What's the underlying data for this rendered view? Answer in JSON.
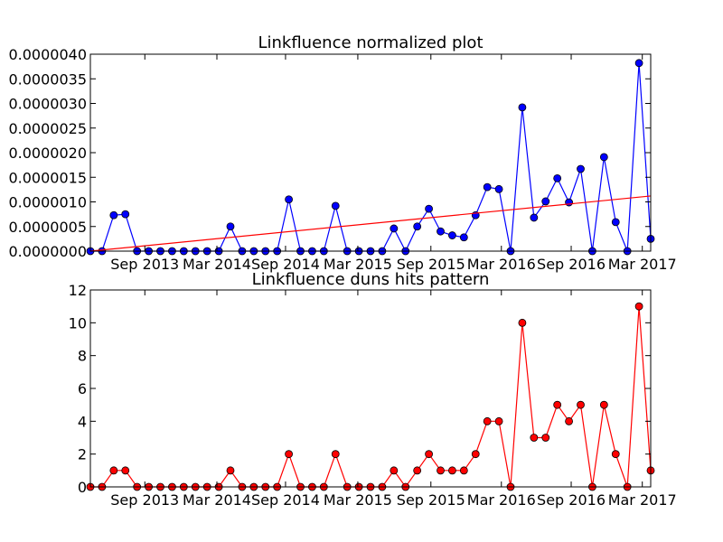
{
  "chart_data": [
    {
      "type": "line",
      "title": "Linkfluence normalized plot",
      "xlabel": "",
      "ylabel": "",
      "x_tick_labels": [
        "Sep 2013",
        "Mar 2014",
        "Sep 2014",
        "Mar 2015",
        "Sep 2015",
        "Mar 2016",
        "Sep 2016",
        "Mar 2017"
      ],
      "y_tick_labels": [
        "0.0000000",
        "0.0000005",
        "0.0000010",
        "0.0000015",
        "0.0000020",
        "0.0000025",
        "0.0000030",
        "0.0000035",
        "0.0000040"
      ],
      "ylim": [
        0,
        4e-06
      ],
      "grid": false,
      "series": [
        {
          "color": "#0000ff",
          "marker": "circle",
          "values": [
            0,
            0,
            7.3e-07,
            7.5e-07,
            0,
            0,
            0,
            0,
            0,
            0,
            0,
            0,
            5e-07,
            0,
            0,
            0,
            0,
            1.05e-06,
            0,
            0,
            0,
            9.2e-07,
            0,
            0,
            0,
            0,
            4.6e-07,
            0,
            5e-07,
            8.6e-07,
            4e-07,
            3.2e-07,
            2.8e-07,
            7.3e-07,
            1.3e-06,
            1.26e-06,
            0,
            2.92e-06,
            6.8e-07,
            1.01e-06,
            1.48e-06,
            9.9e-07,
            1.67e-06,
            0,
            1.91e-06,
            5.9e-07,
            0,
            3.82e-06,
            2.5e-07
          ]
        },
        {
          "color": "#ff0000",
          "marker": "none",
          "trend_start": 0,
          "trend_end": 1.12e-06
        }
      ]
    },
    {
      "type": "line",
      "title": "Linkfluence duns hits pattern",
      "xlabel": "",
      "ylabel": "",
      "x_tick_labels": [
        "Sep 2013",
        "Mar 2014",
        "Sep 2014",
        "Mar 2015",
        "Sep 2015",
        "Mar 2016",
        "Sep 2016",
        "Mar 2017"
      ],
      "y_tick_labels": [
        "0",
        "2",
        "4",
        "6",
        "8",
        "10",
        "12"
      ],
      "ylim": [
        0,
        12
      ],
      "grid": false,
      "series": [
        {
          "color": "#ff0000",
          "marker": "circle",
          "values": [
            0,
            0,
            1,
            1,
            0,
            0,
            0,
            0,
            0,
            0,
            0,
            0,
            1,
            0,
            0,
            0,
            0,
            2,
            0,
            0,
            0,
            2,
            0,
            0,
            0,
            0,
            1,
            0,
            1,
            2,
            1,
            1,
            1,
            2,
            4,
            4,
            0,
            10,
            3,
            3,
            5,
            4,
            5,
            0,
            5,
            2,
            0,
            11,
            1
          ]
        }
      ]
    }
  ]
}
